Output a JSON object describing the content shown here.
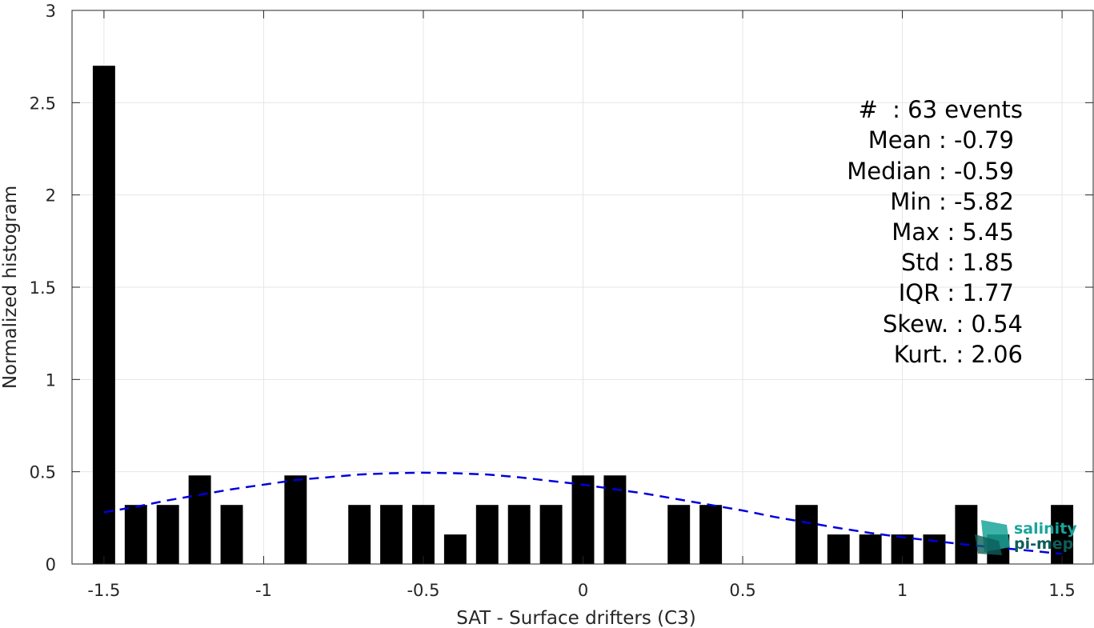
{
  "chart_data": {
    "type": "bar",
    "xlabel": "SAT - Surface drifters (C3)",
    "ylabel": "Normalized histogram",
    "xlim": [
      -1.6,
      1.6
    ],
    "ylim": [
      0,
      3
    ],
    "xticks": [
      -1.5,
      -1,
      -0.5,
      0,
      0.5,
      1,
      1.5
    ],
    "xtick_labels": [
      "-1.5",
      "-1",
      "-0.5",
      "0",
      "0.5",
      "1",
      "1.5"
    ],
    "yticks": [
      0,
      0.5,
      1,
      1.5,
      2,
      2.5,
      3
    ],
    "ytick_labels": [
      "0",
      "0.5",
      "1",
      "1.5",
      "2",
      "2.5",
      "3"
    ],
    "grid": true,
    "bin_width": 0.1,
    "bar_color": "#000000",
    "bars": [
      {
        "x": -1.5,
        "y": 2.7
      },
      {
        "x": -1.4,
        "y": 0.32
      },
      {
        "x": -1.3,
        "y": 0.32
      },
      {
        "x": -1.2,
        "y": 0.48
      },
      {
        "x": -1.1,
        "y": 0.32
      },
      {
        "x": -0.9,
        "y": 0.48
      },
      {
        "x": -0.7,
        "y": 0.32
      },
      {
        "x": -0.6,
        "y": 0.32
      },
      {
        "x": -0.5,
        "y": 0.32
      },
      {
        "x": -0.4,
        "y": 0.16
      },
      {
        "x": -0.3,
        "y": 0.32
      },
      {
        "x": -0.2,
        "y": 0.32
      },
      {
        "x": -0.1,
        "y": 0.32
      },
      {
        "x": 0.0,
        "y": 0.48
      },
      {
        "x": 0.1,
        "y": 0.48
      },
      {
        "x": 0.3,
        "y": 0.32
      },
      {
        "x": 0.4,
        "y": 0.32
      },
      {
        "x": 0.7,
        "y": 0.32
      },
      {
        "x": 0.8,
        "y": 0.16
      },
      {
        "x": 0.9,
        "y": 0.16
      },
      {
        "x": 1.0,
        "y": 0.16
      },
      {
        "x": 1.1,
        "y": 0.16
      },
      {
        "x": 1.2,
        "y": 0.32
      },
      {
        "x": 1.3,
        "y": 0.16
      },
      {
        "x": 1.5,
        "y": 0.32
      }
    ],
    "fit_curve": {
      "style": "dashed",
      "color": "#0000dd",
      "x": [
        -1.5,
        -1.4,
        -1.3,
        -1.2,
        -1.1,
        -1.0,
        -0.9,
        -0.8,
        -0.7,
        -0.6,
        -0.5,
        -0.4,
        -0.3,
        -0.2,
        -0.1,
        0.0,
        0.1,
        0.2,
        0.3,
        0.4,
        0.5,
        0.6,
        0.7,
        0.8,
        0.9,
        1.0,
        1.1,
        1.2,
        1.3,
        1.4,
        1.5
      ],
      "y": [
        0.28,
        0.31,
        0.345,
        0.375,
        0.405,
        0.43,
        0.455,
        0.47,
        0.485,
        0.492,
        0.495,
        0.492,
        0.485,
        0.47,
        0.45,
        0.43,
        0.405,
        0.38,
        0.35,
        0.32,
        0.29,
        0.255,
        0.225,
        0.195,
        0.168,
        0.145,
        0.125,
        0.105,
        0.088,
        0.072,
        0.055
      ]
    },
    "annotations": [
      "#  : 63 events",
      "Mean : -0.79",
      "Median : -0.59",
      "Min : -5.82",
      "Max : 5.45",
      "Std : 1.85",
      "IQR : 1.77",
      "Skew. : 0.54",
      "Kurt. : 2.06"
    ]
  },
  "logo": {
    "line1": "salinity",
    "line2": "pi-mep",
    "color_primary": "#1aa59a",
    "color_dark": "#0e5e5a"
  }
}
